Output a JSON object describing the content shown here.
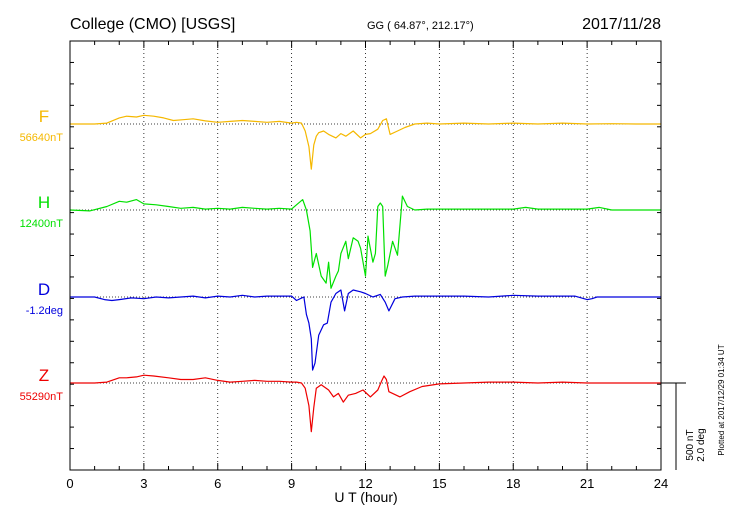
{
  "header": {
    "station": "College (CMO)  [USGS]",
    "coords": "GG ( 64.87°, 212.17°)",
    "date": "2017/11/28"
  },
  "chart_data": {
    "type": "line",
    "xlabel": "U T (hour)",
    "xlim": [
      0,
      24
    ],
    "xticks": [
      "0",
      "3",
      "6",
      "9",
      "12",
      "15",
      "18",
      "21",
      "24"
    ],
    "scale_label_1": "500 nT",
    "scale_label_2": "2.0 deg",
    "plotted_note": "Plotted at 2017/12/29 01:34 UT",
    "series": [
      {
        "name": "F",
        "baseline_label": "56640nT",
        "color": "#f5b800",
        "offset_nT": 0,
        "x": [
          0,
          1,
          1.5,
          2,
          2.3,
          2.7,
          3,
          3.4,
          3.8,
          4.2,
          4.6,
          5,
          5.5,
          6,
          6.5,
          7,
          7.5,
          8,
          8.5,
          9,
          9.2,
          9.4,
          9.55,
          9.7,
          9.8,
          9.9,
          10,
          10.1,
          10.3,
          10.5,
          10.8,
          11,
          11.2,
          11.5,
          11.8,
          12,
          12.2,
          12.5,
          12.7,
          12.85,
          13,
          13.3,
          13.6,
          14,
          14.5,
          15,
          16,
          17,
          18,
          19,
          20,
          21,
          22,
          23,
          24
        ],
        "y": [
          0,
          0,
          -5,
          -35,
          -45,
          -40,
          -50,
          -45,
          -35,
          -20,
          -25,
          -30,
          -18,
          -10,
          -15,
          -20,
          -15,
          -10,
          -15,
          -5,
          -10,
          -5,
          40,
          130,
          260,
          120,
          70,
          50,
          40,
          60,
          80,
          55,
          70,
          40,
          80,
          60,
          55,
          30,
          -20,
          -30,
          60,
          40,
          20,
          0,
          -5,
          0,
          -5,
          0,
          -5,
          0,
          -5,
          0,
          -2,
          0,
          0
        ]
      },
      {
        "name": "H",
        "baseline_label": "12400nT",
        "color": "#00e000",
        "offset_nT": 0,
        "x": [
          0,
          0.8,
          1.5,
          2,
          2.3,
          2.7,
          3,
          3.5,
          4,
          4.5,
          5,
          5.5,
          6,
          6.5,
          7,
          7.5,
          8,
          8.5,
          9,
          9.2,
          9.45,
          9.6,
          9.75,
          9.85,
          10,
          10.2,
          10.4,
          10.5,
          10.6,
          10.8,
          10.9,
          11,
          11.2,
          11.3,
          11.5,
          11.7,
          11.8,
          12,
          12.1,
          12.3,
          12.4,
          12.5,
          12.6,
          12.7,
          12.8,
          12.9,
          13.1,
          13.3,
          13.5,
          13.7,
          14,
          14.5,
          15,
          16,
          17,
          18,
          18.5,
          19,
          20,
          21,
          21.5,
          22,
          23,
          24
        ],
        "y": [
          0,
          5,
          -20,
          -50,
          -45,
          -60,
          -35,
          -30,
          -20,
          -10,
          -15,
          -5,
          -10,
          -5,
          -15,
          -10,
          -5,
          -10,
          -5,
          -30,
          -60,
          0,
          120,
          330,
          250,
          380,
          420,
          300,
          450,
          380,
          350,
          250,
          180,
          280,
          160,
          180,
          220,
          380,
          150,
          300,
          250,
          -20,
          -40,
          -20,
          380,
          320,
          180,
          260,
          -80,
          -20,
          0,
          -5,
          -5,
          -5,
          -5,
          -5,
          -15,
          -5,
          -5,
          -5,
          -15,
          0,
          0,
          0
        ]
      },
      {
        "name": "D",
        "baseline_label": "-1.2deg",
        "color": "#0000dd",
        "offset_nT": 0,
        "x": [
          0,
          1,
          1.4,
          1.7,
          2,
          2.5,
          3,
          3.5,
          4,
          4.5,
          5,
          5.5,
          6,
          6.5,
          7,
          7.5,
          8,
          8.5,
          9,
          9.2,
          9.35,
          9.5,
          9.6,
          9.7,
          9.8,
          9.85,
          9.95,
          10.1,
          10.3,
          10.45,
          10.6,
          10.8,
          11,
          11.15,
          11.3,
          11.5,
          11.8,
          12,
          12.3,
          12.6,
          12.8,
          12.95,
          13.2,
          13.5,
          14,
          15,
          16,
          17,
          18,
          19,
          20,
          20.5,
          21,
          21.2,
          21.4,
          22,
          23,
          24
        ],
        "y": [
          0,
          0,
          15,
          20,
          15,
          5,
          10,
          0,
          5,
          0,
          -5,
          5,
          -5,
          0,
          -10,
          0,
          -5,
          -5,
          -5,
          20,
          10,
          0,
          100,
          150,
          240,
          420,
          380,
          220,
          160,
          150,
          30,
          -20,
          -40,
          80,
          -20,
          -40,
          -30,
          -20,
          0,
          -15,
          30,
          80,
          10,
          0,
          -5,
          -5,
          -5,
          0,
          -10,
          -5,
          -5,
          -5,
          15,
          10,
          0,
          0,
          0,
          0
        ]
      },
      {
        "name": "Z",
        "baseline_label": "55290nT",
        "color": "#ee0000",
        "offset_nT": 0,
        "x": [
          0,
          1,
          1.5,
          2,
          2.3,
          2.7,
          3,
          3.4,
          4,
          4.5,
          5,
          5.5,
          6,
          6.5,
          7,
          7.5,
          8,
          8.5,
          9,
          9.2,
          9.4,
          9.55,
          9.7,
          9.8,
          9.9,
          10,
          10.2,
          10.5,
          10.7,
          10.9,
          11.1,
          11.3,
          11.6,
          11.9,
          12.2,
          12.5,
          12.65,
          12.75,
          12.85,
          12.95,
          13.1,
          13.4,
          13.8,
          14.3,
          15,
          16,
          17,
          18,
          19,
          20,
          21,
          22,
          23,
          24
        ],
        "y": [
          0,
          0,
          -5,
          -30,
          -30,
          -35,
          -45,
          -40,
          -30,
          -20,
          -20,
          -30,
          -15,
          -5,
          -10,
          -15,
          -10,
          -10,
          -5,
          -5,
          0,
          30,
          130,
          280,
          140,
          30,
          10,
          40,
          80,
          60,
          110,
          70,
          60,
          40,
          80,
          40,
          -10,
          -40,
          -20,
          50,
          60,
          80,
          50,
          20,
          5,
          0,
          -5,
          -5,
          0,
          -5,
          0,
          0,
          0,
          0
        ]
      }
    ]
  }
}
